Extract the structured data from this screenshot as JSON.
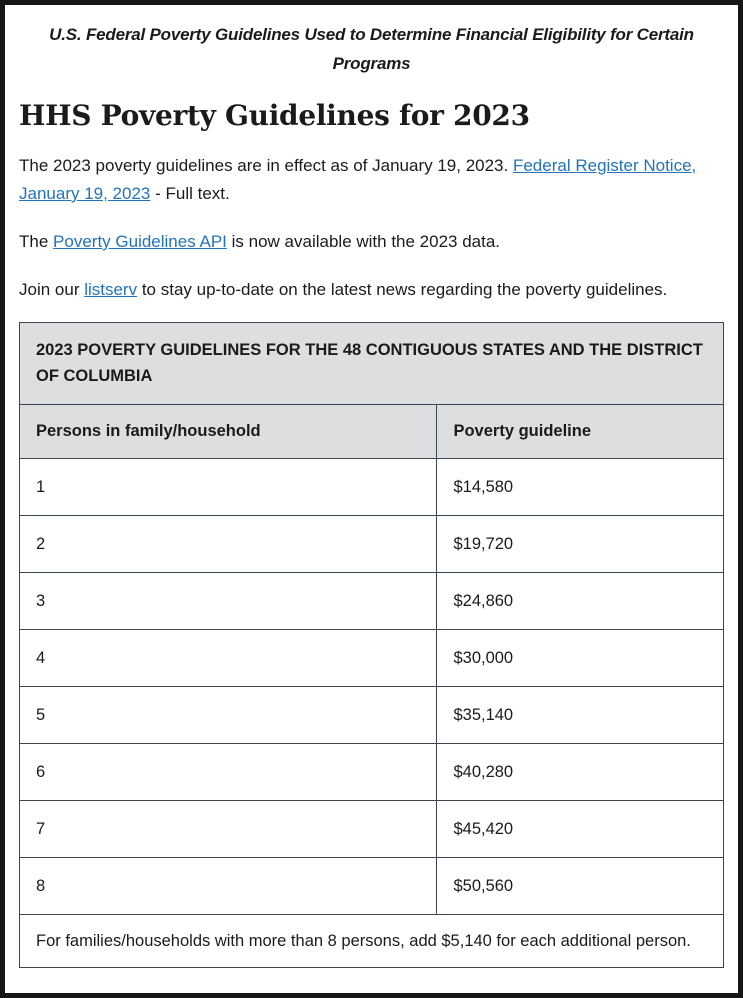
{
  "page": {
    "banner": "U.S. Federal Poverty Guidelines Used to Determine Financial Eligibility for Certain Programs",
    "title": "HHS Poverty Guidelines for 2023"
  },
  "paragraphs": {
    "effective": {
      "text1": "The 2023 poverty guidelines are in effect as of January 19, 2023. ",
      "link": "Federal Register Notice, January 19, 2023",
      "text2": " - Full text."
    },
    "api": {
      "text1": "The ",
      "link": "Poverty Guidelines API",
      "text2": " is now available with the 2023 data."
    },
    "listserv": {
      "text1": "Join our ",
      "link": "listserv",
      "text2": " to stay up-to-date on the latest news regarding the poverty guidelines."
    }
  },
  "table": {
    "caption": "2023 POVERTY GUIDELINES FOR THE 48 CONTIGUOUS STATES AND THE DISTRICT OF COLUMBIA",
    "columns": [
      "Persons in family/household",
      "Poverty guideline"
    ],
    "rows": [
      {
        "persons": "1",
        "guideline": "$14,580"
      },
      {
        "persons": "2",
        "guideline": "$19,720"
      },
      {
        "persons": "3",
        "guideline": "$24,860"
      },
      {
        "persons": "4",
        "guideline": "$30,000"
      },
      {
        "persons": "5",
        "guideline": "$35,140"
      },
      {
        "persons": "6",
        "guideline": "$40,280"
      },
      {
        "persons": "7",
        "guideline": "$45,420"
      },
      {
        "persons": "8",
        "guideline": "$50,560"
      }
    ],
    "footnote": "For families/households with more than 8 persons, add $5,140 for each additional person."
  },
  "colors": {
    "link": "#2373b8",
    "header_bg": "#dcdee0",
    "table_border": "#3d4551",
    "text": "#1b1b1b",
    "page_border": "#161616"
  }
}
